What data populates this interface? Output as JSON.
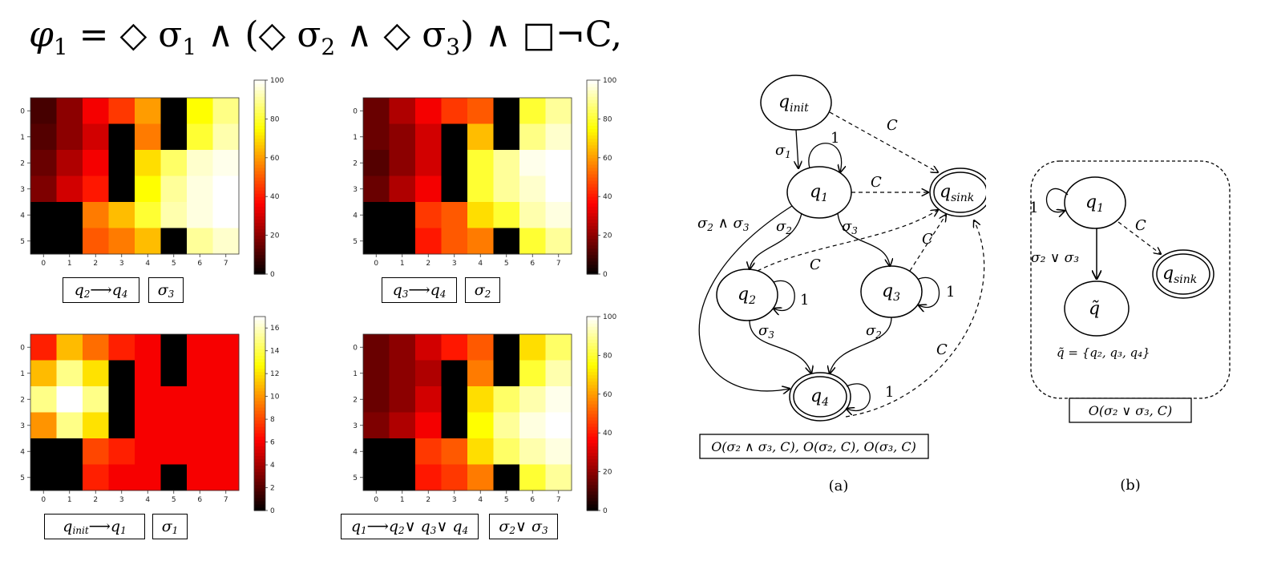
{
  "formula": {
    "phi": "φ",
    "phi_sub": "1",
    "rest": " = ◇ σ",
    "s1": "1",
    "and1": " ∧ (◇ σ",
    "s2": "2",
    "and2": " ∧ ◇ σ",
    "s3": "3",
    "end": ") ∧ □¬C,"
  },
  "heatmaps": [
    {
      "id": "hm1",
      "xticks": [
        "0",
        "1",
        "2",
        "3",
        "4",
        "5",
        "6",
        "7"
      ],
      "yticks": [
        "0",
        "1",
        "2",
        "3",
        "4",
        "5"
      ],
      "cbar_ticks": [
        "0",
        "20",
        "40",
        "60",
        "80",
        "100"
      ],
      "vmax": 100,
      "values": [
        [
          10,
          20,
          35,
          45,
          60,
          0,
          75,
          88
        ],
        [
          12,
          20,
          30,
          0,
          55,
          0,
          80,
          92
        ],
        [
          15,
          25,
          35,
          0,
          70,
          85,
          95,
          98
        ],
        [
          18,
          30,
          40,
          0,
          75,
          90,
          97,
          100
        ],
        [
          0,
          0,
          55,
          65,
          80,
          92,
          97,
          100
        ],
        [
          0,
          0,
          50,
          55,
          65,
          0,
          90,
          95
        ]
      ],
      "label_state": {
        "a": "q",
        "a_sub": "2",
        "arrow": " ⟶ ",
        "b": "q",
        "b_sub": "4"
      },
      "label_event": {
        "a": "σ",
        "a_sub": "3"
      }
    },
    {
      "id": "hm2",
      "xticks": [
        "0",
        "1",
        "2",
        "3",
        "4",
        "5",
        "6",
        "7"
      ],
      "yticks": [
        "0",
        "1",
        "2",
        "3",
        "4",
        "5"
      ],
      "cbar_ticks": [
        "0",
        "20",
        "40",
        "60",
        "80",
        "100"
      ],
      "vmax": 100,
      "values": [
        [
          15,
          25,
          35,
          45,
          50,
          0,
          80,
          90
        ],
        [
          15,
          20,
          30,
          0,
          65,
          0,
          88,
          95
        ],
        [
          12,
          20,
          30,
          0,
          80,
          90,
          98,
          100
        ],
        [
          15,
          25,
          35,
          0,
          80,
          90,
          95,
          100
        ],
        [
          0,
          0,
          45,
          50,
          70,
          80,
          92,
          97
        ],
        [
          0,
          0,
          40,
          50,
          55,
          0,
          80,
          90
        ]
      ],
      "label_state": {
        "a": "q",
        "a_sub": "3",
        "arrow": " ⟶ ",
        "b": "q",
        "b_sub": "4"
      },
      "label_event": {
        "a": "σ",
        "a_sub": "2"
      }
    },
    {
      "id": "hm3",
      "xticks": [
        "0",
        "1",
        "2",
        "3",
        "4",
        "5",
        "6",
        "7"
      ],
      "yticks": [
        "0",
        "1",
        "2",
        "3",
        "4",
        "5"
      ],
      "cbar_ticks": [
        "0",
        "2",
        "4",
        "6",
        "8",
        "10",
        "12",
        "14",
        "16"
      ],
      "vmax": 17,
      "values": [
        [
          7,
          11,
          9,
          7,
          6,
          0,
          6,
          6
        ],
        [
          11,
          15,
          12,
          0,
          6,
          0,
          6,
          6
        ],
        [
          15,
          17,
          15,
          0,
          6,
          6,
          6,
          6
        ],
        [
          10,
          15,
          12,
          0,
          6,
          6,
          6,
          6
        ],
        [
          0,
          0,
          8,
          7,
          6,
          6,
          6,
          6
        ],
        [
          0,
          0,
          7,
          6,
          6,
          0,
          6,
          6
        ]
      ],
      "label_state": {
        "a": "q",
        "a_sub": "init",
        "arrow": " ⟶ ",
        "b": "q",
        "b_sub": "1"
      },
      "label_event": {
        "a": "σ",
        "a_sub": "1"
      }
    },
    {
      "id": "hm4",
      "xticks": [
        "0",
        "1",
        "2",
        "3",
        "4",
        "5",
        "6",
        "7"
      ],
      "yticks": [
        "0",
        "1",
        "2",
        "3",
        "4",
        "5"
      ],
      "cbar_ticks": [
        "0",
        "20",
        "40",
        "60",
        "80",
        "100"
      ],
      "vmax": 100,
      "values": [
        [
          15,
          20,
          30,
          40,
          50,
          0,
          70,
          85
        ],
        [
          15,
          20,
          25,
          0,
          55,
          0,
          80,
          92
        ],
        [
          15,
          20,
          30,
          0,
          70,
          85,
          92,
          98
        ],
        [
          18,
          25,
          35,
          0,
          75,
          90,
          97,
          100
        ],
        [
          0,
          0,
          45,
          50,
          70,
          85,
          92,
          97
        ],
        [
          0,
          0,
          40,
          45,
          55,
          0,
          80,
          90
        ]
      ],
      "label_state": {
        "a": "q",
        "a_sub": "1",
        "arrow": " ⟶ ",
        "b": "q",
        "b_sub": "2",
        "c": " ∨ q",
        "c_sub": "3",
        "d": " ∨ q",
        "d_sub": "4"
      },
      "label_event": {
        "a": "σ",
        "a_sub": "2",
        "b": " ∨ σ",
        "b_sub": "3"
      }
    }
  ],
  "diagram_a": {
    "states": {
      "q_init": "init",
      "q1": "1",
      "q2": "2",
      "q3": "3",
      "q4": "4",
      "q_sink": "sink"
    },
    "q_letter": "q",
    "edge_labels": {
      "C": "C",
      "one": "1",
      "sigma": "σ",
      "s1": "1",
      "s2": "2",
      "s3": "3",
      "and": " ∧ σ"
    },
    "obligation": "O(σ₂ ∧ σ₃, C), O(σ₂, C), O(σ₃, C)",
    "caption": "(a)"
  },
  "diagram_b": {
    "q_letter": "q",
    "q1_sub": "1",
    "q_sink_sub": "sink",
    "qtilde": "q̃",
    "loop": "1",
    "C": "C",
    "or_label": "σ₂ ∨ σ₃",
    "set_def": "q̃ = {q₂, q₃, q₄}",
    "obligation": "O(σ₂ ∨ σ₃, C)",
    "caption": "(b)"
  }
}
